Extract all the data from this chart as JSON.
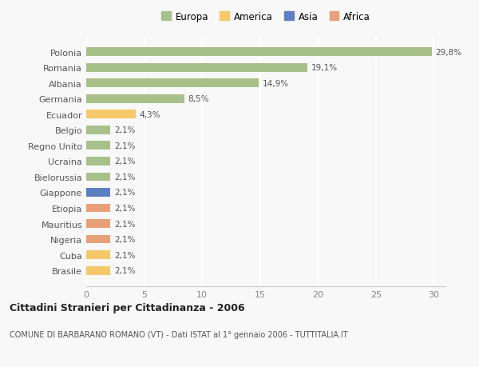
{
  "countries": [
    "Polonia",
    "Romania",
    "Albania",
    "Germania",
    "Ecuador",
    "Belgio",
    "Regno Unito",
    "Ucraina",
    "Bielorussia",
    "Giappone",
    "Etiopia",
    "Mauritius",
    "Nigeria",
    "Cuba",
    "Brasile"
  ],
  "values": [
    29.8,
    19.1,
    14.9,
    8.5,
    4.3,
    2.1,
    2.1,
    2.1,
    2.1,
    2.1,
    2.1,
    2.1,
    2.1,
    2.1,
    2.1
  ],
  "labels": [
    "29,8%",
    "19,1%",
    "14,9%",
    "8,5%",
    "4,3%",
    "2,1%",
    "2,1%",
    "2,1%",
    "2,1%",
    "2,1%",
    "2,1%",
    "2,1%",
    "2,1%",
    "2,1%",
    "2,1%"
  ],
  "continents": [
    "Europa",
    "Europa",
    "Europa",
    "Europa",
    "America",
    "Europa",
    "Europa",
    "Europa",
    "Europa",
    "Asia",
    "Africa",
    "Africa",
    "Africa",
    "America",
    "America"
  ],
  "colors": {
    "Europa": "#a8c08a",
    "America": "#f5c96a",
    "Asia": "#5b7fc1",
    "Africa": "#e8a07a"
  },
  "xlim": [
    0,
    31
  ],
  "xticks": [
    0,
    5,
    10,
    15,
    20,
    25,
    30
  ],
  "title": "Cittadini Stranieri per Cittadinanza - 2006",
  "subtitle": "COMUNE DI BARBARANO ROMANO (VT) - Dati ISTAT al 1° gennaio 2006 - TUTTITALIA.IT",
  "background_color": "#f8f8f8",
  "grid_color": "#ffffff",
  "bar_height": 0.55
}
